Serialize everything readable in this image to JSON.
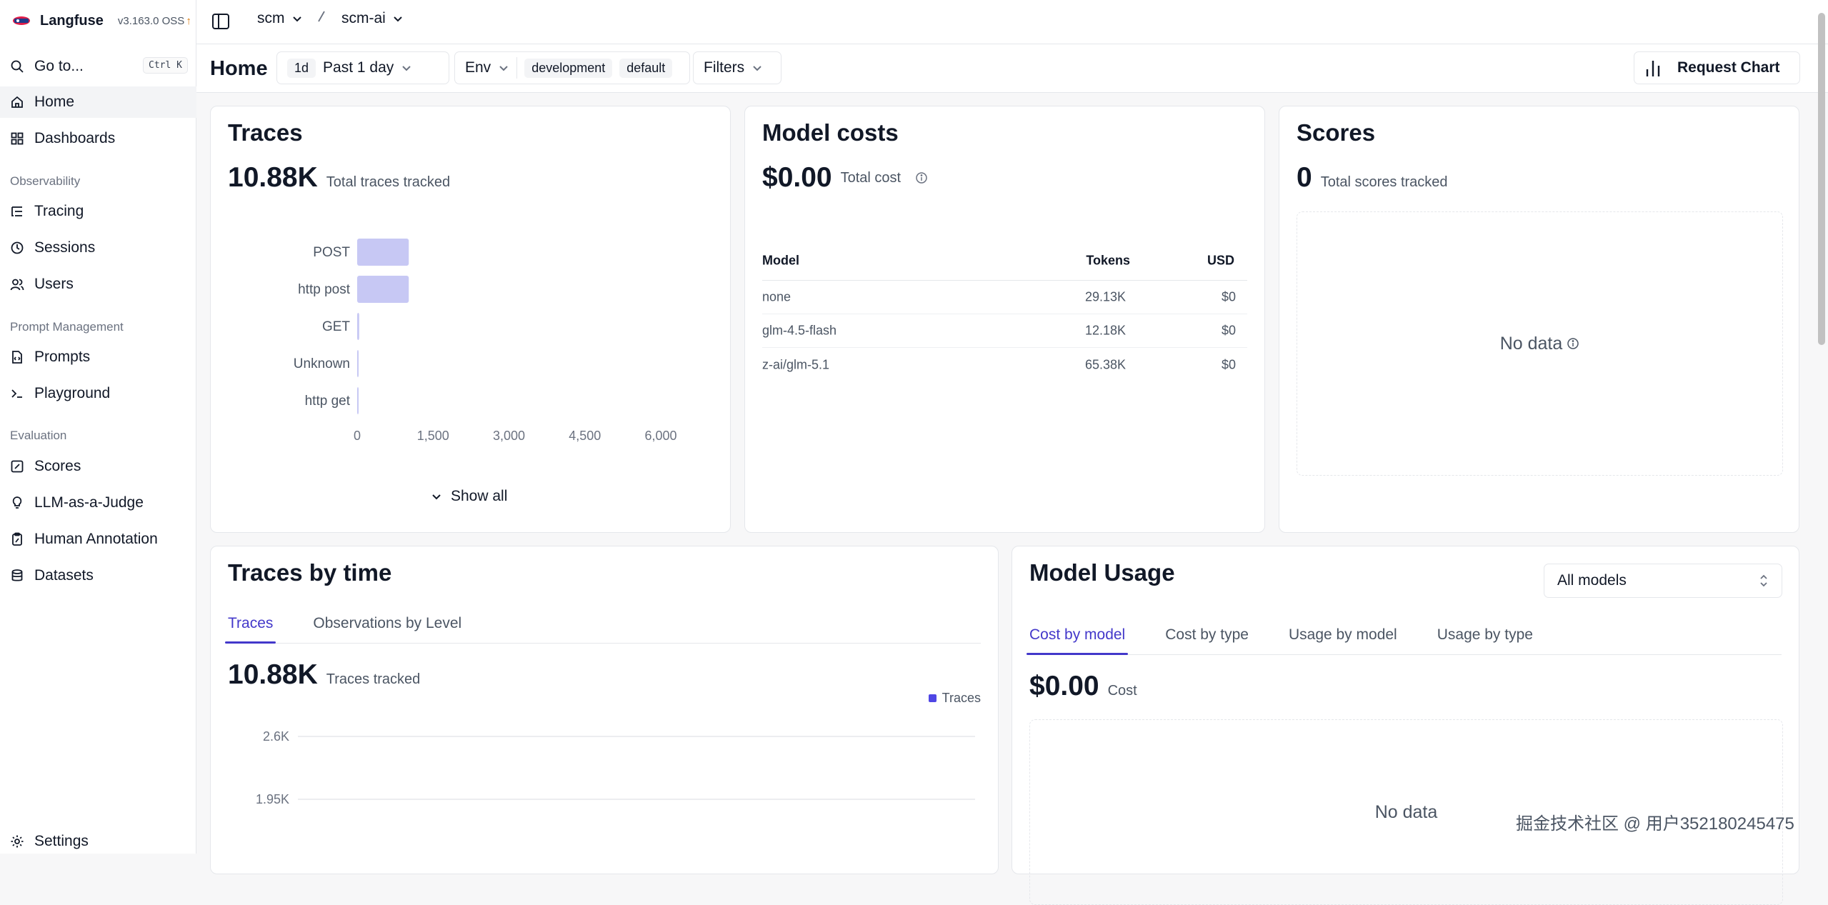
{
  "app": {
    "name": "Langfuse",
    "version": "v3.163.0 OSS",
    "version_update_icon": "arrow-up-icon"
  },
  "breadcrumb": {
    "org": "scm",
    "project": "scm-ai"
  },
  "sidebar": {
    "goto_label": "Go to...",
    "goto_shortcut": "Ctrl K",
    "top_items": [
      {
        "label": "Home",
        "icon": "home-icon",
        "active": true
      },
      {
        "label": "Dashboards",
        "icon": "dashboard-icon"
      }
    ],
    "sections": [
      {
        "title": "Observability",
        "items": [
          {
            "label": "Tracing",
            "icon": "list-tree-icon"
          },
          {
            "label": "Sessions",
            "icon": "clock-icon"
          },
          {
            "label": "Users",
            "icon": "users-icon"
          }
        ]
      },
      {
        "title": "Prompt Management",
        "items": [
          {
            "label": "Prompts",
            "icon": "file-code-icon"
          },
          {
            "label": "Playground",
            "icon": "terminal-icon"
          }
        ]
      },
      {
        "title": "Evaluation",
        "items": [
          {
            "label": "Scores",
            "icon": "score-square-icon"
          },
          {
            "label": "LLM-as-a-Judge",
            "icon": "lightbulb-icon"
          },
          {
            "label": "Human Annotation",
            "icon": "clipboard-pen-icon"
          },
          {
            "label": "Datasets",
            "icon": "database-icon"
          }
        ]
      }
    ],
    "settings_label": "Settings"
  },
  "filterbar": {
    "title": "Home",
    "range_badge": "1d",
    "range_label": "Past 1 day",
    "env_label": "Env",
    "env_values": [
      "development",
      "default"
    ],
    "filters_label": "Filters",
    "request_chart_label": "Request Chart"
  },
  "traces_card": {
    "title": "Traces",
    "total": "10.88K",
    "total_label": "Total traces tracked",
    "show_all_label": "Show all"
  },
  "model_costs_card": {
    "title": "Model costs",
    "total": "$0.00",
    "total_label": "Total cost",
    "columns": [
      "Model",
      "Tokens",
      "USD"
    ],
    "rows": [
      {
        "model": "none",
        "tokens": "29.13K",
        "usd": "$0"
      },
      {
        "model": "glm-4.5-flash",
        "tokens": "12.18K",
        "usd": "$0"
      },
      {
        "model": "z-ai/glm-5.1",
        "tokens": "65.38K",
        "usd": "$0"
      }
    ]
  },
  "scores_card": {
    "title": "Scores",
    "total": "0",
    "total_label": "Total scores tracked",
    "empty_label": "No data"
  },
  "traces_by_time_card": {
    "title": "Traces by time",
    "tabs": [
      "Traces",
      "Observations by Level"
    ],
    "active_tab": 0,
    "total": "10.88K",
    "total_label": "Traces tracked"
  },
  "model_usage_card": {
    "title": "Model Usage",
    "model_select": "All models",
    "tabs": [
      "Cost by model",
      "Cost by type",
      "Usage by model",
      "Usage by type"
    ],
    "active_tab": 0,
    "total": "$0.00",
    "total_label": "Cost",
    "empty_label": "No data"
  },
  "watermark": "掘金技术社区 @ 用户352180245475",
  "colors": {
    "accent": "#4338ca",
    "bar_fill": "#c7c8f4",
    "line_series": "#4f46e5"
  },
  "chart_data": [
    {
      "type": "bar",
      "orientation": "horizontal",
      "categories": [
        "POST",
        "http post",
        "GET",
        "Unknown",
        "http get"
      ],
      "values": [
        1020,
        1020,
        40,
        15,
        15
      ],
      "xlim": [
        0,
        6000
      ],
      "xticks": [
        "0",
        "1,500",
        "3,000",
        "4,500",
        "6,000"
      ]
    },
    {
      "type": "line",
      "series": [
        {
          "name": "Traces",
          "values": []
        }
      ],
      "yticks": [
        "2.6K",
        "1.95K"
      ],
      "legend": "top-right"
    }
  ]
}
